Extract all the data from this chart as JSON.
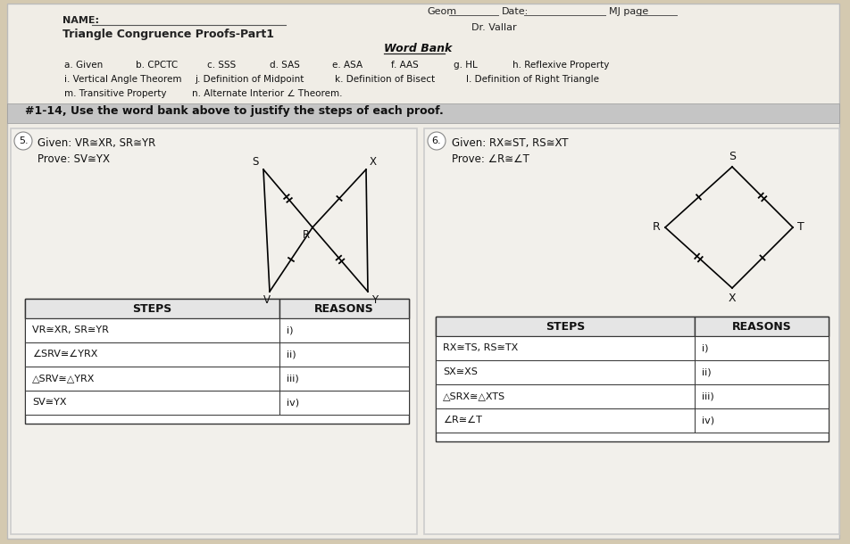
{
  "bg_color": "#d4c9b0",
  "paper_color": "#f0ede6",
  "card_color": "#f2f0eb",
  "title": "Triangle Congruence Proofs-Part1",
  "name_label": "NAME:",
  "geom_label": "Geom",
  "date_label": "Date:",
  "mj_label": "MJ page",
  "dr_vallar": "Dr. Vallar",
  "word_bank_title": "Word Bank",
  "word_bank_row1": [
    "a. Given",
    "b. CPCTC",
    "c. SSS",
    "d. SAS",
    "e. ASA",
    "f. AAS",
    "g. HL",
    "h. Reflexive Property"
  ],
  "word_bank_row2": [
    "i. Vertical Angle Theorem",
    "j. Definition of Midpoint",
    "k. Definition of Bisect",
    "l. Definition of Right Triangle"
  ],
  "word_bank_row3": [
    "m. Transitive Property",
    "n. Alternate Interior ∠ Theorem."
  ],
  "instruction": "#1-14, Use the word bank above to justify the steps of each proof.",
  "prob5_num": "5.",
  "prob5_given": "Given: VR≅XR, SR≅YR",
  "prob5_prove": "Prove: SV≅YX",
  "prob5_steps": [
    "VR≅XR, SR≅YR",
    "∠SRV≅∠YRX",
    "△SRV≅△YRX",
    "SV≅YX"
  ],
  "prob5_reasons": [
    "i)",
    "ii)",
    "iii)",
    "iv)"
  ],
  "prob6_num": "6.",
  "prob6_given": "Given: RX≅ST, RS≅XT",
  "prob6_prove": "Prove: ∠R≅∠T",
  "prob6_steps": [
    "RX≅TS, RS≅TX",
    "SX≅XS",
    "△SRX≅△XTS",
    "∠R≅∠T"
  ],
  "prob6_reasons": [
    "i)",
    "ii)",
    "iii)",
    "iv)"
  ],
  "table_header_steps": "STEPS",
  "table_header_reasons": "REASONS"
}
